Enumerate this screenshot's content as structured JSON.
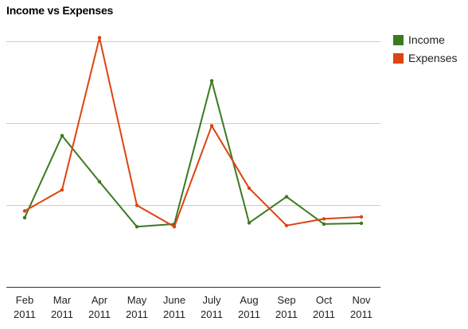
{
  "chart_data": {
    "type": "line",
    "title": "Income vs Expenses",
    "xlabel": "",
    "ylabel": "",
    "categories": [
      [
        "Feb",
        "2011"
      ],
      [
        "Mar",
        "2011"
      ],
      [
        "Apr",
        "2011"
      ],
      [
        "May",
        "2011"
      ],
      [
        "June",
        "2011"
      ],
      [
        "July",
        "2011"
      ],
      [
        "Aug",
        "2011"
      ],
      [
        "Sep",
        "2011"
      ],
      [
        "Oct",
        "2011"
      ],
      [
        "Nov",
        "2011"
      ]
    ],
    "ylim": [
      0,
      100
    ],
    "yticks": [
      0,
      33.33,
      66.67,
      100
    ],
    "y_tick_labels_shown": false,
    "grid": true,
    "legend_position": "right",
    "series": [
      {
        "name": "Income",
        "color": "#3b7a1f",
        "values": [
          28.2,
          61.6,
          42.8,
          24.5,
          25.6,
          83.9,
          26.1,
          36.7,
          25.6,
          25.9
        ]
      },
      {
        "name": "Expenses",
        "color": "#dd4411",
        "values": [
          30.9,
          39.5,
          101.5,
          33.2,
          24.5,
          65.6,
          40.2,
          25.0,
          27.7,
          28.5
        ]
      }
    ]
  }
}
